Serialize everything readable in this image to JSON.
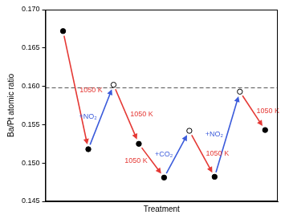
{
  "chart_data": {
    "type": "scatter",
    "y_label": "Ba/Pt atomic ratio",
    "x_label": "Treatment",
    "x": [
      1,
      2,
      3,
      4,
      5,
      6,
      7,
      8,
      9
    ],
    "series": [
      {
        "color": "#000000",
        "marker": "filled_circle",
        "values": [
          0.1672,
          0.1518,
          null,
          0.1525,
          0.1481,
          null,
          0.1482,
          null,
          0.1543
        ]
      },
      {
        "color": "#000000",
        "marker": "open_circle",
        "values": [
          null,
          null,
          0.1602,
          null,
          null,
          0.1542,
          null,
          0.1593,
          null
        ]
      }
    ],
    "arrows": [
      {
        "from": 1,
        "to": 2,
        "label": "1050 K",
        "color": "#e53935"
      },
      {
        "from": 2,
        "to": 3,
        "label": "+NO₂",
        "color": "#3b5bdb"
      },
      {
        "from": 3,
        "to": 4,
        "label": "1050 K",
        "color": "#e53935"
      },
      {
        "from": 4,
        "to": 5,
        "label": "1050 K",
        "color": "#e53935"
      },
      {
        "from": 5,
        "to": 6,
        "label": "+CO₂",
        "color": "#3b5bdb"
      },
      {
        "from": 6,
        "to": 7,
        "label": "1050 K",
        "color": "#e53935"
      },
      {
        "from": 7,
        "to": 8,
        "label": "+NO₂",
        "color": "#3b5bdb"
      },
      {
        "from": 8,
        "to": 9,
        "label": "1050 K",
        "color": "#e53935"
      }
    ],
    "reference_line": 0.1598,
    "xlim": [
      0.3,
      9.5
    ],
    "ylim": [
      0.145,
      0.17
    ],
    "yticks": [
      0.145,
      {
        "value": 0.15,
        "label": "0.150"
      },
      0.155,
      {
        "value": 0.16,
        "label": "0.160"
      },
      0.165,
      {
        "value": 0.17,
        "label": "0.170"
      }
    ],
    "tick_labels": "y",
    "grid": false
  }
}
